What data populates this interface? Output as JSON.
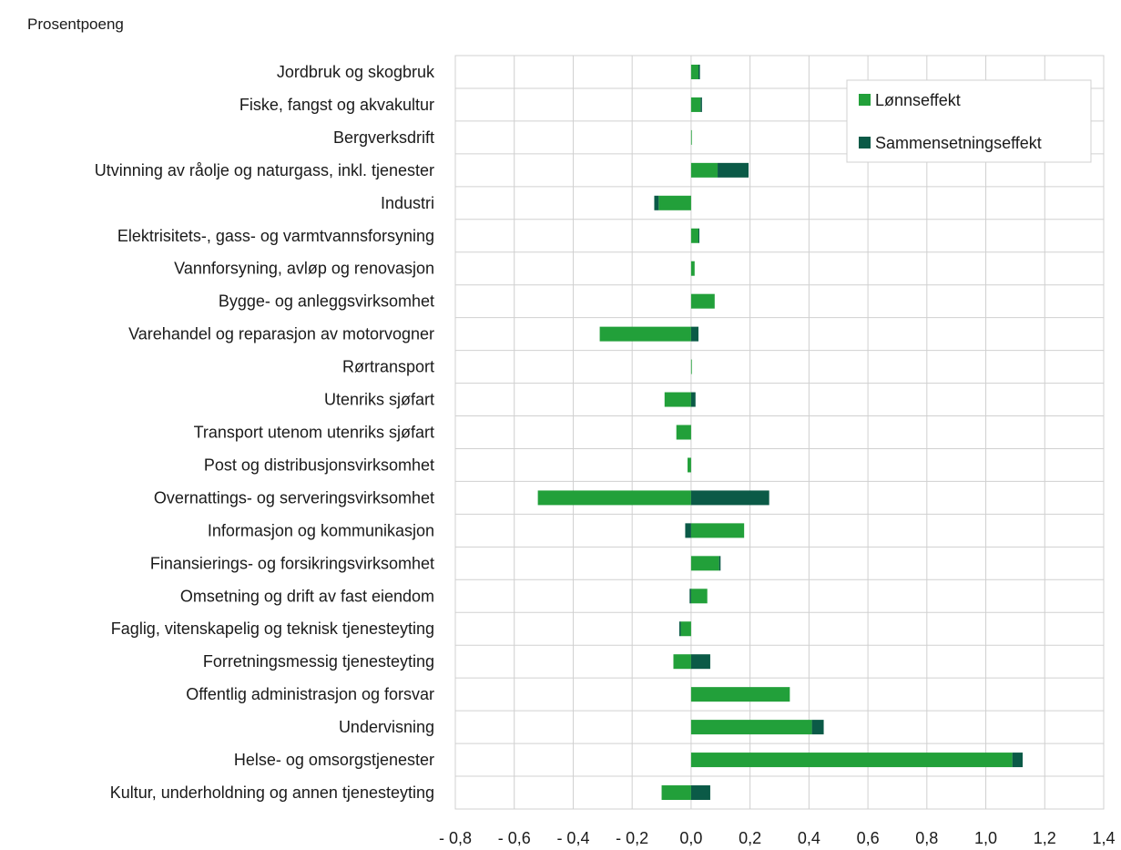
{
  "chart_data": {
    "type": "bar",
    "orientation": "horizontal",
    "stacked": true,
    "unit_label": "Prosentpoeng",
    "categories": [
      "Jordbruk og skogbruk",
      "Fiske, fangst og akvakultur",
      "Bergverksdrift",
      "Utvinning av råolje og naturgass, inkl. tjenester",
      "Industri",
      "Elektrisitets-, gass- og varmtvannsforsyning",
      "Vannforsyning, avløp og renovasjon",
      "Bygge- og anleggsvirksomhet",
      "Varehandel og reparasjon av motorvogner",
      "Rørtransport",
      "Utenriks sjøfart",
      "Transport utenom utenriks sjøfart",
      "Post og distribusjonsvirksomhet",
      "Overnattings- og serveringsvirksomhet",
      "Informasjon og kommunikasjon",
      "Finansierings- og forsikringsvirksomhet",
      "Omsetning og drift av fast eiendom",
      "Faglig, vitenskapelig og teknisk tjenesteyting",
      "Forretningsmessig tjenesteyting",
      "Offentlig administrasjon og forsvar",
      "Undervisning",
      "Helse- og omsorgstjenester",
      "Kultur, underholdning og annen tjenesteyting"
    ],
    "series": [
      {
        "name": "Lønnseffekt",
        "color": "#22a03a",
        "values": [
          0.025,
          0.032,
          0.002,
          0.09,
          -0.11,
          0.025,
          0.012,
          0.08,
          -0.31,
          0.001,
          -0.09,
          -0.05,
          -0.012,
          -0.52,
          0.18,
          0.095,
          0.055,
          -0.035,
          -0.06,
          0.335,
          0.41,
          1.09,
          -0.1
        ]
      },
      {
        "name": "Sammensetningseffekt",
        "color": "#0b5a47",
        "values": [
          0.005,
          0.005,
          0.0,
          0.105,
          -0.015,
          0.003,
          0.0,
          0.0,
          0.025,
          0.0,
          0.015,
          0.0,
          0.0,
          0.265,
          -0.02,
          0.005,
          -0.005,
          -0.005,
          0.065,
          0.0,
          0.04,
          0.035,
          0.065
        ]
      }
    ],
    "x_ticks": [
      "- 0,8",
      "- 0,6",
      "- 0,4",
      "- 0,2",
      "0,0",
      "0,2",
      "0,4",
      "0,6",
      "0,8",
      "1,0",
      "1,2",
      "1,4"
    ],
    "xlim": [
      -0.8,
      1.4
    ],
    "grid": true,
    "legend_position": "top-right"
  }
}
